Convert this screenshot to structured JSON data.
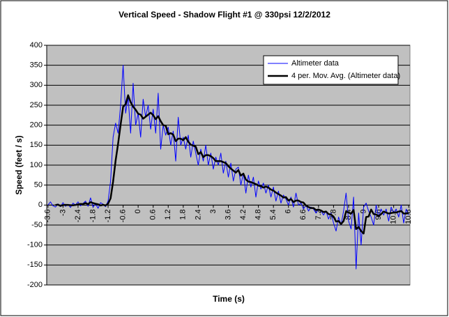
{
  "chart_data": {
    "type": "line",
    "title": "Vertical Speed - Shadow Flight #1 @ 330psi 12/2/2012",
    "x_label": "Time (s)",
    "y_label": "Speed (feet / s)",
    "categories": [
      "-3.6",
      null,
      null,
      null,
      null,
      null,
      "-3",
      null,
      null,
      null,
      null,
      null,
      "-2.4",
      null,
      null,
      null,
      null,
      null,
      "-1.8",
      null,
      null,
      null,
      null,
      null,
      "-1.2",
      null,
      null,
      null,
      null,
      null,
      "-0.6",
      null,
      null,
      null,
      null,
      null,
      "0",
      null,
      null,
      null,
      null,
      null,
      "0.6",
      null,
      null,
      null,
      null,
      null,
      "1.2",
      null,
      null,
      null,
      null,
      null,
      "1.8",
      null,
      null,
      null,
      null,
      null,
      "2.4",
      null,
      null,
      null,
      null,
      null,
      "3",
      null,
      null,
      null,
      null,
      null,
      "3.6",
      null,
      null,
      null,
      null,
      null,
      "4.2",
      null,
      null,
      null,
      null,
      null,
      "4.8",
      null,
      null,
      null,
      null,
      null,
      "5.4",
      null,
      null,
      null,
      null,
      null,
      "6",
      null,
      null,
      null,
      null,
      null,
      "6.6",
      null,
      null,
      null,
      null,
      null,
      "7.2",
      null,
      null,
      null,
      null,
      null,
      "7.8",
      null,
      null,
      null,
      null,
      null,
      "8.4",
      null,
      null,
      null,
      null,
      null,
      "9",
      null,
      null,
      null,
      null,
      null,
      "9.6",
      null,
      null,
      null,
      null,
      null,
      "10.2",
      null,
      null,
      null,
      null,
      null,
      "10.8"
    ],
    "series": [
      {
        "name": "Altimeter data",
        "color": "#0000ff",
        "values": [
          0,
          8,
          -2,
          -5,
          3,
          -4,
          6,
          -3,
          2,
          -6,
          5,
          0,
          8,
          -2,
          4,
          10,
          -3,
          18,
          -5,
          3,
          -8,
          6,
          2,
          -4,
          10,
          60,
          170,
          205,
          180,
          250,
          350,
          230,
          270,
          180,
          305,
          200,
          230,
          170,
          265,
          220,
          250,
          190,
          240,
          180,
          280,
          140,
          200,
          175,
          195,
          150,
          185,
          110,
          220,
          150,
          170,
          140,
          175,
          120,
          160,
          130,
          100,
          140,
          110,
          150,
          100,
          130,
          90,
          120,
          100,
          130,
          80,
          110,
          70,
          105,
          60,
          90,
          95,
          50,
          80,
          30,
          75,
          45,
          70,
          20,
          60,
          40,
          55,
          30,
          50,
          20,
          45,
          10,
          35,
          5,
          25,
          15,
          0,
          20,
          -5,
          30,
          0,
          5,
          -10,
          0,
          -15,
          -5,
          -10,
          -20,
          -10,
          -15,
          -25,
          -15,
          -35,
          -20,
          -45,
          -65,
          -30,
          -50,
          -15,
          30,
          -40,
          -60,
          20,
          -160,
          -20,
          -100,
          -5,
          5,
          -15,
          -30,
          -50,
          0,
          -30,
          -10,
          -25,
          -10,
          -40,
          -5,
          -20,
          -10,
          -30,
          0,
          -45,
          -10,
          -25
        ]
      },
      {
        "name": "4 per. Mov. Avg. (Altimeter data)",
        "color": "#000000",
        "values": [
          null,
          null,
          null,
          0.25,
          1,
          -2,
          0,
          0.5,
          0.25,
          -0.25,
          -0.5,
          0.25,
          1.75,
          2.75,
          2.5,
          5,
          2.25,
          7.25,
          5,
          3.25,
          2,
          -1,
          0.75,
          -1,
          3.5,
          17,
          59,
          111.25,
          153.75,
          201.25,
          246.25,
          252.5,
          275,
          257.5,
          246.25,
          238.75,
          228.75,
          226.25,
          216.25,
          221.25,
          226.25,
          231.25,
          225,
          215,
          222.5,
          210,
          200,
          198.75,
          177.5,
          180,
          176.25,
          160,
          166.25,
          166.25,
          162.5,
          170,
          158.75,
          151.25,
          148.75,
          146.25,
          127.5,
          132.5,
          120,
          125,
          125,
          122.5,
          117.5,
          110,
          110,
          110,
          107.5,
          105,
          97.5,
          91.25,
          86.25,
          81.25,
          87.5,
          73.75,
          78.75,
          63.75,
          58.75,
          57.5,
          55,
          52.5,
          48.75,
          47.5,
          43.75,
          46.25,
          43.75,
          38.75,
          36.25,
          31.25,
          27.5,
          23.75,
          18.75,
          20,
          11.25,
          15,
          7.5,
          11.25,
          11.25,
          7.5,
          6.25,
          -1.25,
          -5,
          -7.5,
          -7.5,
          -12.5,
          -11.25,
          -13.75,
          -17.5,
          -16.25,
          -22.5,
          -23.75,
          -28.75,
          -41.25,
          -40,
          -47.5,
          -40,
          -16.25,
          -18.75,
          -21.25,
          -12.5,
          -60,
          -55,
          -65,
          -71.25,
          -30,
          -28.75,
          -11.25,
          -22.5,
          -23.75,
          -27.5,
          -22.5,
          -16.25,
          -18.75,
          -21.25,
          -20,
          -18.75,
          -18.75,
          -16.25,
          -15,
          -21.25,
          -21.25,
          -20
        ]
      }
    ],
    "ylim": [
      -200,
      400
    ],
    "yticks": [
      -200,
      -150,
      -100,
      -50,
      0,
      50,
      100,
      150,
      200,
      250,
      300,
      350,
      400
    ],
    "grid": true,
    "legend": "top-right"
  }
}
